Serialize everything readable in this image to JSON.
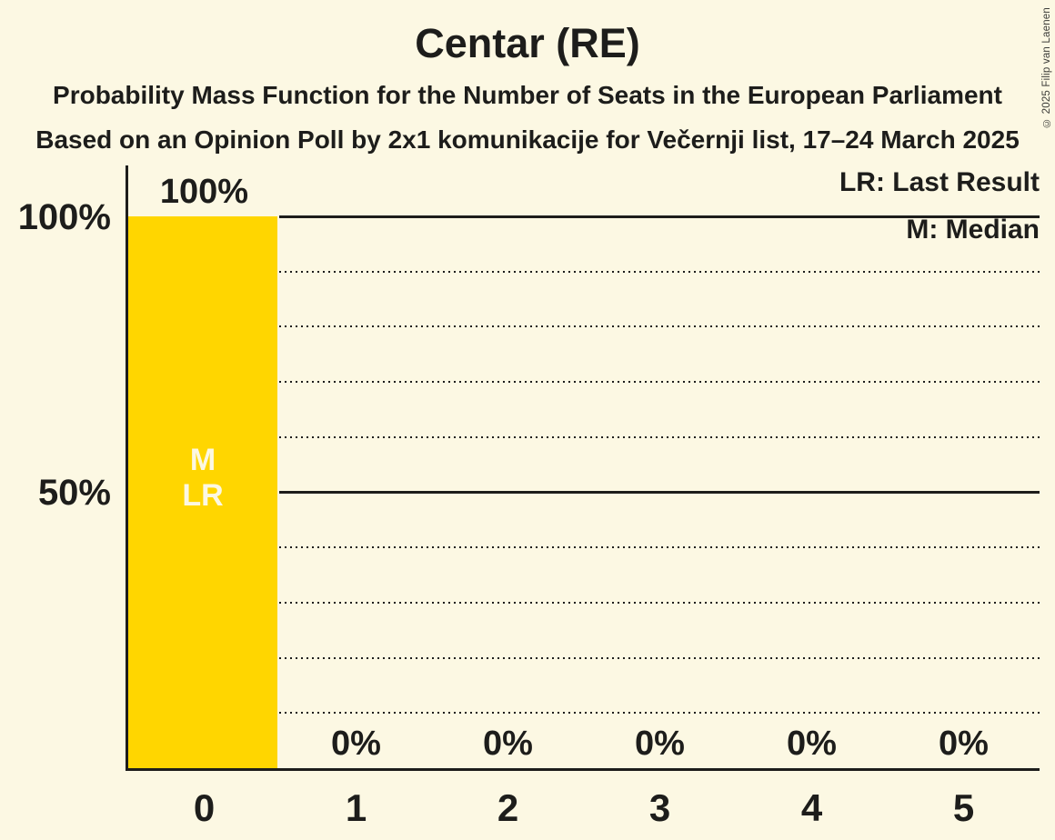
{
  "title": "Centar (RE)",
  "subtitle1": "Probability Mass Function for the Number of Seats in the European Parliament",
  "subtitle2": "Based on an Opinion Poll by 2x1 komunikacije for Večernji list, 17–24 March 2025",
  "copyright": "© 2025 Filip van Laenen",
  "legend": {
    "lr": "LR: Last Result",
    "m": "M: Median"
  },
  "y_axis": {
    "labels": [
      {
        "text": "100%",
        "value": 100
      },
      {
        "text": "50%",
        "value": 50
      }
    ]
  },
  "colors": {
    "background": "#fcf8e3",
    "bar": "#ffd600",
    "text": "#1d1d1b",
    "bar_inner_label": "#fcf8e3"
  },
  "chart_data": {
    "type": "bar",
    "title": "Centar (RE)",
    "categories": [
      "0",
      "1",
      "2",
      "3",
      "4",
      "5"
    ],
    "values": [
      100,
      0,
      0,
      0,
      0,
      0
    ],
    "value_labels": [
      "100%",
      "0%",
      "0%",
      "0%",
      "0%",
      "0%"
    ],
    "xlabel": "",
    "ylabel": "",
    "ylim": [
      0,
      100
    ],
    "gridlines": {
      "solid": [
        100,
        50
      ],
      "dotted": [
        90,
        80,
        70,
        60,
        40,
        30,
        20,
        10
      ]
    },
    "legend_position": "top-right",
    "annotations": {
      "median_seat": 0,
      "median_label": "M",
      "last_result_seat": 0,
      "last_result_label": "LR"
    }
  }
}
